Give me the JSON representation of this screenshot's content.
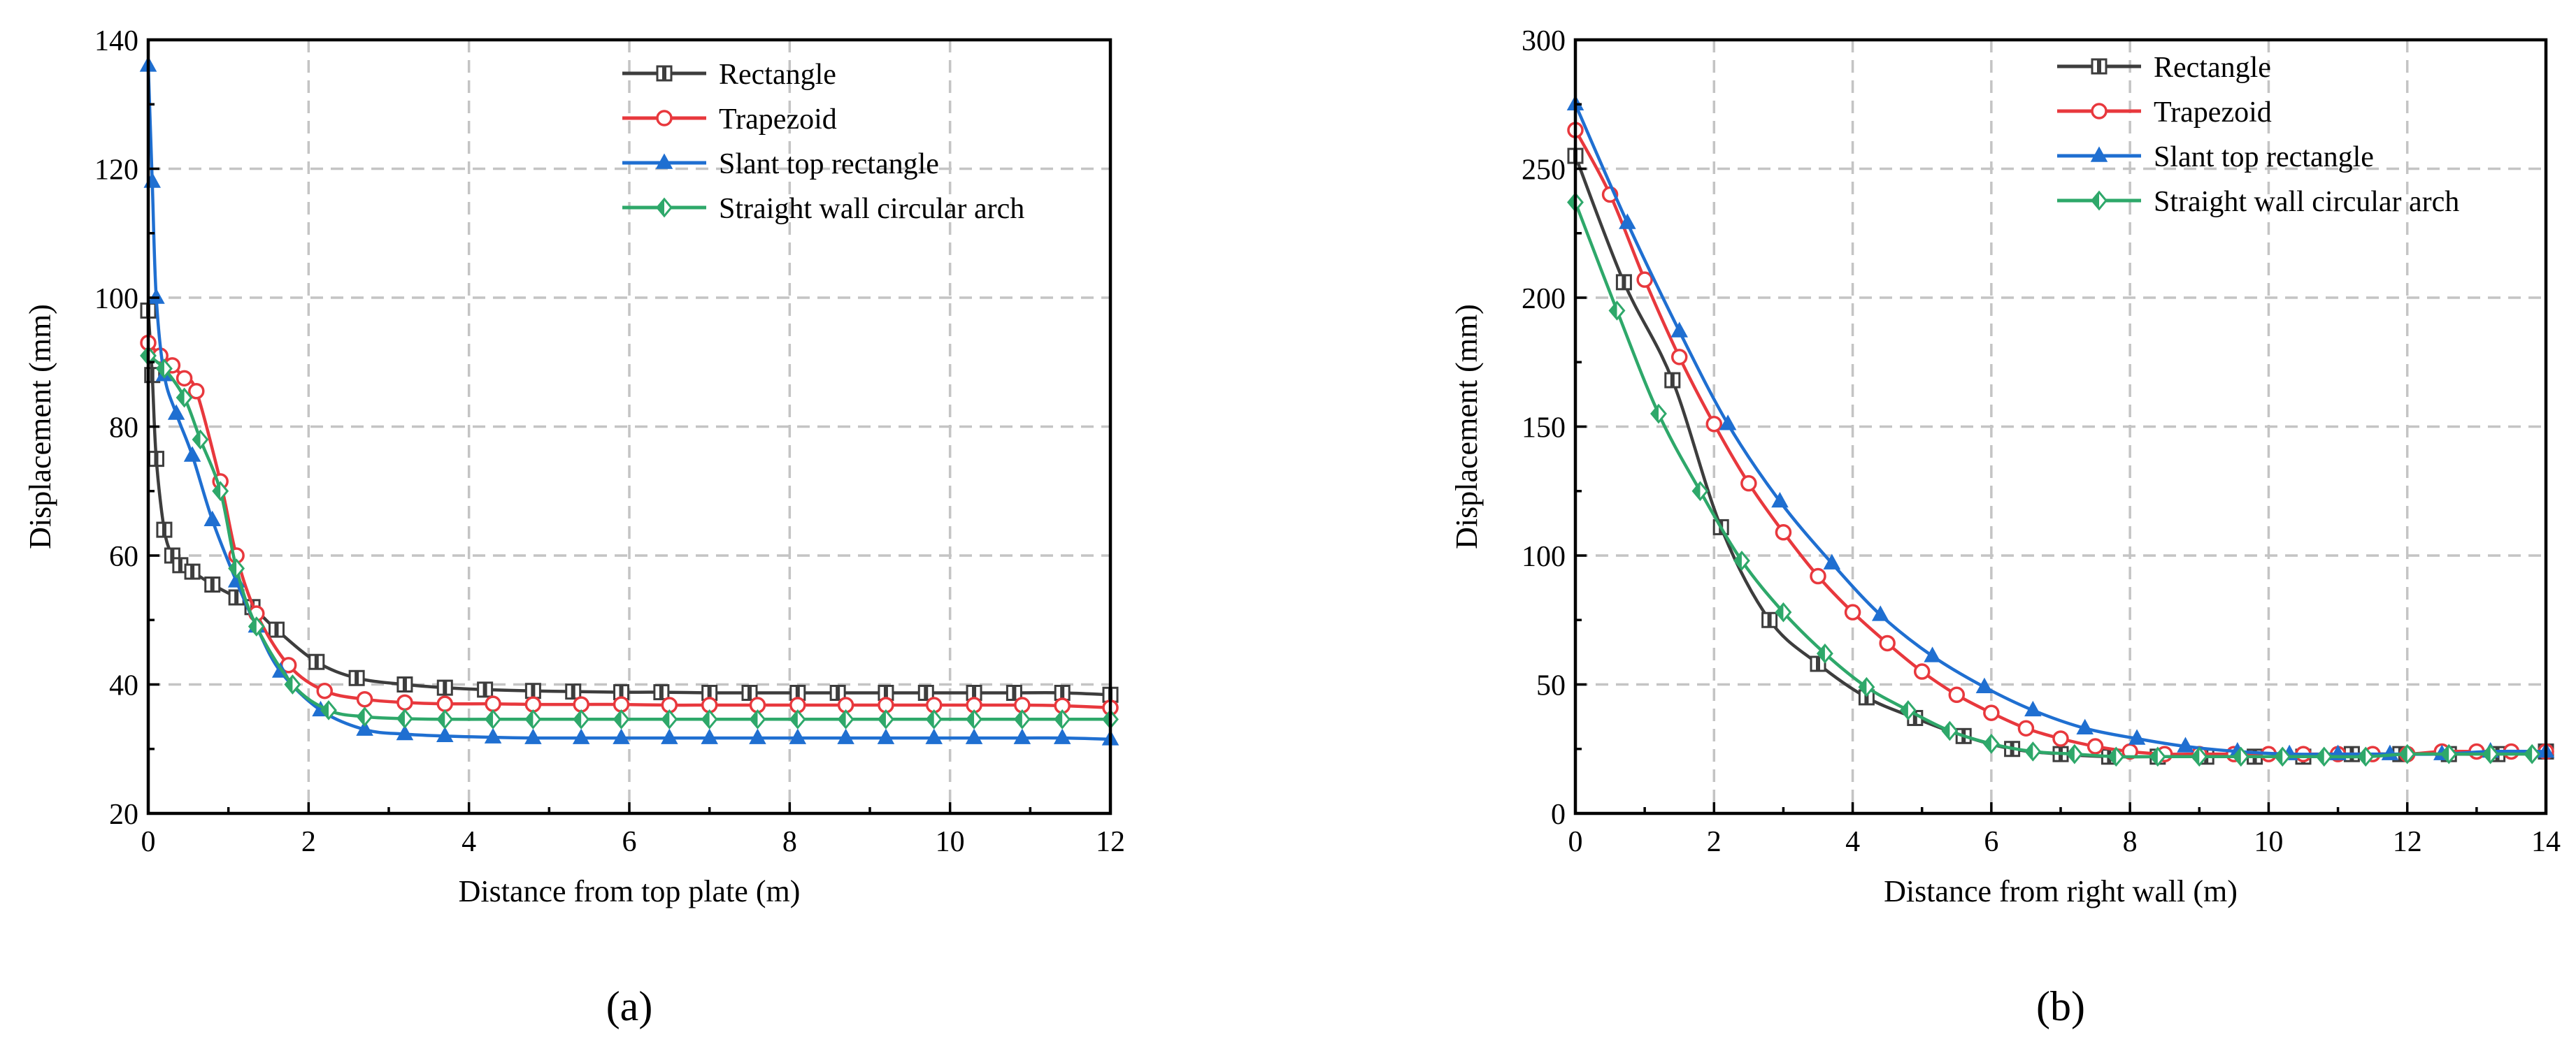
{
  "chart_data": [
    {
      "type": "line",
      "panel_label": "(a)",
      "xlabel": "Distance from top plate (m)",
      "ylabel": "Displacement (mm)",
      "xlim": [
        0,
        12
      ],
      "ylim": [
        20,
        140
      ],
      "xticks": [
        0,
        2,
        4,
        6,
        8,
        10,
        12
      ],
      "yticks": [
        20,
        40,
        60,
        80,
        100,
        120,
        140
      ],
      "grid": true,
      "legend_position": "top-right",
      "series": [
        {
          "name": "Rectangle",
          "color": "#3d3d3d",
          "marker": "square",
          "x": [
            0,
            0.05,
            0.1,
            0.2,
            0.3,
            0.4,
            0.55,
            0.8,
            1.1,
            1.3,
            1.6,
            2.1,
            2.6,
            3.2,
            3.7,
            4.2,
            4.8,
            5.3,
            5.9,
            6.4,
            7.0,
            7.5,
            8.1,
            8.6,
            9.2,
            9.7,
            10.3,
            10.8,
            11.4,
            12.0
          ],
          "y": [
            98,
            88,
            75,
            64,
            60,
            58.5,
            57.5,
            55.5,
            53.5,
            52,
            48.5,
            43.5,
            41,
            40,
            39.5,
            39.2,
            39,
            38.9,
            38.8,
            38.8,
            38.7,
            38.7,
            38.7,
            38.7,
            38.7,
            38.7,
            38.7,
            38.7,
            38.7,
            38.4
          ]
        },
        {
          "name": "Trapezoid",
          "color": "#e8383d",
          "marker": "circle",
          "x": [
            0,
            0.15,
            0.3,
            0.45,
            0.6,
            0.9,
            1.1,
            1.35,
            1.75,
            2.2,
            2.7,
            3.2,
            3.7,
            4.3,
            4.8,
            5.4,
            5.9,
            6.5,
            7.0,
            7.6,
            8.1,
            8.7,
            9.2,
            9.8,
            10.3,
            10.9,
            11.4,
            12.0
          ],
          "y": [
            93,
            91,
            89.5,
            87.5,
            85.5,
            71.5,
            60,
            51,
            43,
            39,
            37.7,
            37.2,
            37,
            37,
            36.9,
            36.9,
            36.9,
            36.8,
            36.8,
            36.8,
            36.8,
            36.8,
            36.8,
            36.8,
            36.8,
            36.8,
            36.7,
            36.4
          ]
        },
        {
          "name": "Slant top rectangle",
          "color": "#1f6fd1",
          "marker": "triangle",
          "x": [
            0,
            0.05,
            0.1,
            0.2,
            0.35,
            0.55,
            0.8,
            1.1,
            1.35,
            1.65,
            2.15,
            2.7,
            3.2,
            3.7,
            4.3,
            4.8,
            5.4,
            5.9,
            6.5,
            7.0,
            7.6,
            8.1,
            8.7,
            9.2,
            9.8,
            10.3,
            10.9,
            11.4,
            12.0
          ],
          "y": [
            136,
            118,
            100,
            88,
            82,
            75.5,
            65.5,
            56,
            49,
            42,
            36,
            33,
            32.3,
            32,
            31.8,
            31.7,
            31.7,
            31.7,
            31.7,
            31.7,
            31.7,
            31.7,
            31.7,
            31.7,
            31.7,
            31.7,
            31.7,
            31.7,
            31.5
          ]
        },
        {
          "name": "Straight wall circular arch",
          "color": "#2ea86a",
          "marker": "diamond",
          "x": [
            0,
            0.2,
            0.45,
            0.65,
            0.9,
            1.1,
            1.35,
            1.8,
            2.25,
            2.7,
            3.2,
            3.7,
            4.3,
            4.8,
            5.4,
            5.9,
            6.5,
            7.0,
            7.6,
            8.1,
            8.7,
            9.2,
            9.8,
            10.3,
            10.9,
            11.4,
            12.0
          ],
          "y": [
            91,
            89,
            84.5,
            78,
            70,
            58,
            49,
            40,
            36,
            35,
            34.7,
            34.6,
            34.6,
            34.6,
            34.6,
            34.6,
            34.6,
            34.6,
            34.6,
            34.6,
            34.6,
            34.6,
            34.6,
            34.6,
            34.6,
            34.6,
            34.6
          ]
        }
      ]
    },
    {
      "type": "line",
      "panel_label": "(b)",
      "xlabel": "Distance from right wall (m)",
      "ylabel": "Displacement (mm)",
      "xlim": [
        0,
        14
      ],
      "ylim": [
        0,
        300
      ],
      "xticks": [
        0,
        2,
        4,
        6,
        8,
        10,
        12,
        14
      ],
      "yticks": [
        0,
        50,
        100,
        150,
        200,
        250,
        300
      ],
      "grid": true,
      "legend_position": "top-right",
      "series": [
        {
          "name": "Rectangle",
          "color": "#3d3d3d",
          "marker": "square",
          "x": [
            0,
            0.7,
            1.4,
            2.1,
            2.8,
            3.5,
            4.2,
            4.9,
            5.6,
            6.3,
            7.0,
            7.7,
            8.4,
            9.1,
            9.8,
            10.5,
            11.2,
            11.9,
            12.6,
            13.3,
            14.0
          ],
          "y": [
            255,
            206,
            168,
            111,
            75,
            58,
            45,
            37,
            30,
            25,
            23,
            22,
            22,
            22,
            22,
            22,
            23,
            23,
            23,
            23,
            24
          ]
        },
        {
          "name": "Trapezoid",
          "color": "#e8383d",
          "marker": "circle",
          "x": [
            0,
            0.5,
            1.0,
            1.5,
            2.0,
            2.5,
            3.0,
            3.5,
            4.0,
            4.5,
            5.0,
            5.5,
            6.0,
            6.5,
            7.0,
            7.5,
            8.0,
            8.5,
            9.0,
            9.5,
            10.0,
            10.5,
            11.0,
            11.5,
            12.0,
            12.5,
            13.0,
            13.5,
            14.0
          ],
          "y": [
            265,
            240,
            207,
            177,
            151,
            128,
            109,
            92,
            78,
            66,
            55,
            46,
            39,
            33,
            29,
            26,
            24,
            23,
            23,
            23,
            23,
            23,
            23,
            23,
            23,
            24,
            24,
            24,
            24
          ]
        },
        {
          "name": "Slant top rectangle",
          "color": "#1f6fd1",
          "marker": "triangle",
          "x": [
            0,
            0.75,
            1.5,
            2.2,
            2.95,
            3.7,
            4.4,
            5.15,
            5.9,
            6.6,
            7.35,
            8.1,
            8.8,
            9.55,
            10.3,
            11.0,
            11.75,
            12.5,
            13.2,
            14.0
          ],
          "y": [
            275,
            229,
            187,
            151,
            121,
            97,
            77,
            61,
            49,
            40,
            33,
            29,
            26,
            24,
            23,
            23,
            23,
            23,
            24,
            24
          ]
        },
        {
          "name": "Straight wall circular arch",
          "color": "#2ea86a",
          "marker": "diamond",
          "x": [
            0,
            0.6,
            1.2,
            1.8,
            2.4,
            3.0,
            3.6,
            4.2,
            4.8,
            5.4,
            6.0,
            6.6,
            7.2,
            7.8,
            8.4,
            9.0,
            9.6,
            10.2,
            10.8,
            11.4,
            12.0,
            12.6,
            13.2,
            13.8
          ],
          "y": [
            237,
            195,
            155,
            125,
            98,
            78,
            62,
            49,
            40,
            32,
            27,
            24,
            23,
            22,
            22,
            22,
            22,
            22,
            22,
            22,
            23,
            23,
            23,
            23
          ]
        }
      ]
    }
  ]
}
